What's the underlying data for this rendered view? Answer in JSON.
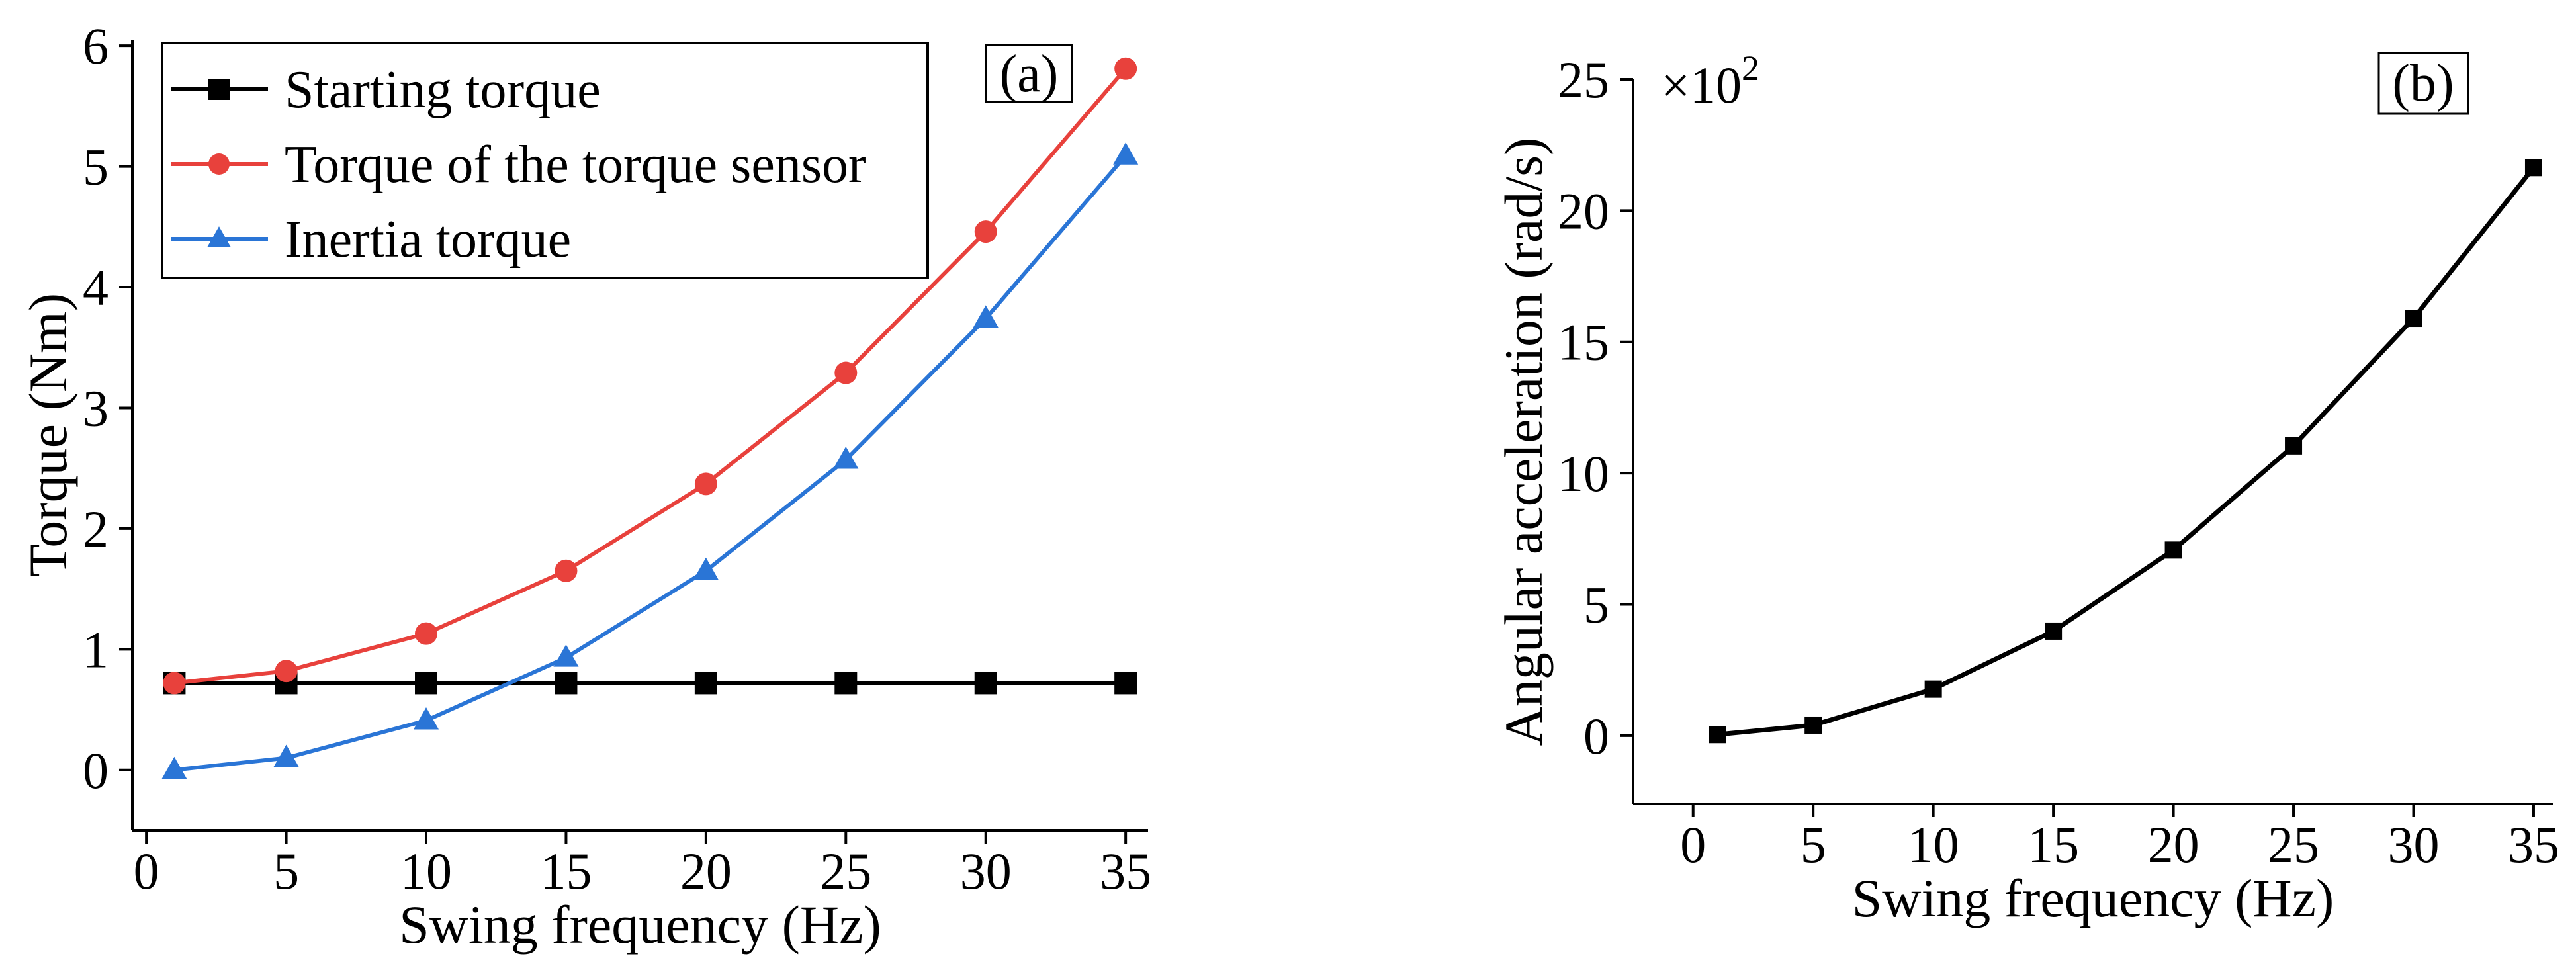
{
  "chart_data": [
    {
      "id": "a",
      "type": "line",
      "panel_label": "(a)",
      "xlabel": "Swing frequency (Hz)",
      "ylabel": "Torque (Nm)",
      "xlim": [
        -0.5,
        35.8
      ],
      "ylim": [
        -0.5,
        6.05
      ],
      "xticks": [
        0,
        5,
        10,
        15,
        20,
        25,
        30,
        35
      ],
      "yticks": [
        0,
        1,
        2,
        3,
        4,
        5,
        6
      ],
      "x": [
        1,
        5,
        10,
        15,
        20,
        25,
        30,
        35
      ],
      "legend_position": "top-left",
      "series": [
        {
          "name": "Starting torque",
          "color": "#000000",
          "marker": "square",
          "values": [
            0.72,
            0.72,
            0.72,
            0.72,
            0.72,
            0.72,
            0.72,
            0.72
          ]
        },
        {
          "name": "Torque of the torque sensor",
          "color": "#e8413c",
          "marker": "circle",
          "values": [
            0.72,
            0.82,
            1.13,
            1.65,
            2.37,
            3.29,
            4.46,
            5.81
          ]
        },
        {
          "name": "Inertia torque",
          "color": "#2a75d6",
          "marker": "triangle",
          "values": [
            0.0,
            0.1,
            0.41,
            0.93,
            1.65,
            2.57,
            3.74,
            5.09
          ]
        }
      ]
    },
    {
      "id": "b",
      "type": "line",
      "panel_label": "(b)",
      "xlabel": "Swing frequency (Hz)",
      "ylabel": "Angular acceleration (rad/s)",
      "multiplier": "×10",
      "multiplier_exp": "2",
      "xlim": [
        -2.5,
        35.8
      ],
      "ylim": [
        -2.6,
        25
      ],
      "xticks": [
        0,
        5,
        10,
        15,
        20,
        25,
        30,
        35
      ],
      "yticks": [
        0,
        5,
        10,
        15,
        20,
        25
      ],
      "x": [
        1,
        5,
        10,
        15,
        20,
        25,
        30,
        35
      ],
      "series": [
        {
          "name": "Angular acceleration",
          "color": "#000000",
          "marker": "square",
          "values": [
            0.04,
            0.4,
            1.77,
            3.98,
            7.07,
            11.04,
            15.9,
            21.64
          ]
        }
      ]
    }
  ]
}
